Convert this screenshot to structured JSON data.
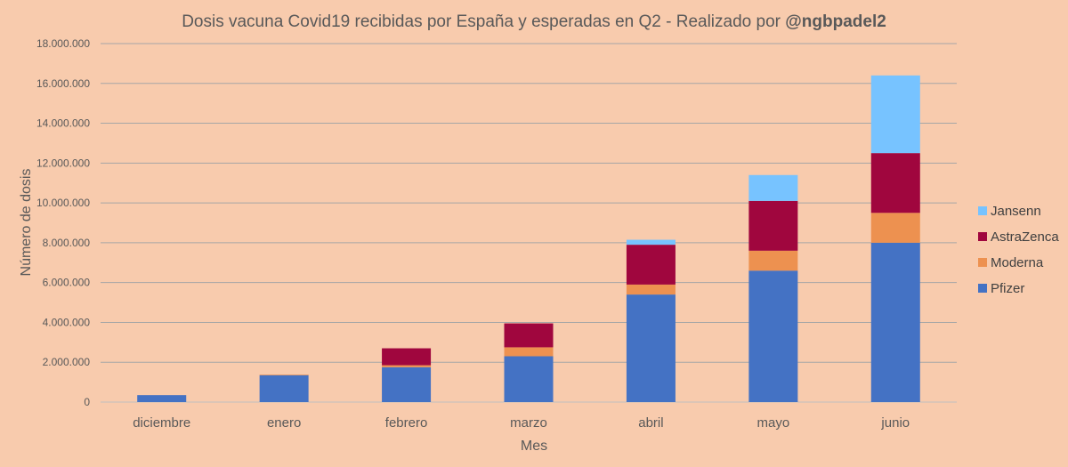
{
  "chart_data": {
    "type": "bar",
    "stacked": true,
    "title": "Dosis vacuna Covid19 recibidas por España y esperadas en Q2 - Realizado por ",
    "title_bold": "@ngbpadel2",
    "xlabel": "Mes",
    "ylabel": "Número de dosis",
    "ylim": [
      0,
      18000000
    ],
    "y_ticks": [
      "0",
      "2.000.000",
      "4.000.000",
      "6.000.000",
      "8.000.000",
      "10.000.000",
      "12.000.000",
      "14.000.000",
      "16.000.000",
      "18.000.000"
    ],
    "y_tick_values": [
      0,
      2000000,
      4000000,
      6000000,
      8000000,
      10000000,
      12000000,
      14000000,
      16000000,
      18000000
    ],
    "grid": true,
    "legend_position": "right",
    "categories": [
      "diciembre",
      "enero",
      "febrero",
      "marzo",
      "abril",
      "mayo",
      "junio"
    ],
    "series": [
      {
        "name": "Pfizer",
        "color": "#4472c4",
        "values": [
          350000,
          1350000,
          1750000,
          2300000,
          5400000,
          6600000,
          8000000
        ]
      },
      {
        "name": "Moderna",
        "color": "#ed9150",
        "values": [
          0,
          30000,
          100000,
          450000,
          500000,
          1000000,
          1500000
        ]
      },
      {
        "name": "AstraZenca",
        "color": "#a0063e",
        "values": [
          0,
          0,
          850000,
          1200000,
          2000000,
          2500000,
          3000000
        ]
      },
      {
        "name": "Jansenn",
        "color": "#77c3ff",
        "values": [
          0,
          0,
          0,
          0,
          250000,
          1300000,
          3900000
        ]
      }
    ]
  }
}
